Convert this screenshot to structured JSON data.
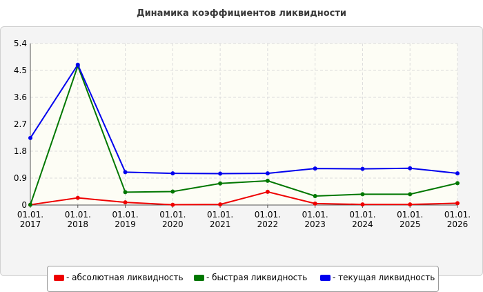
{
  "chart_data": {
    "type": "line",
    "title": "Динамика коэффициентов ликвидности",
    "xlabel": "",
    "ylabel": "",
    "categories": [
      [
        "01.01.",
        "2017"
      ],
      [
        "01.01.",
        "2018"
      ],
      [
        "01.01.",
        "2019"
      ],
      [
        "01.01.",
        "2020"
      ],
      [
        "01.01.",
        "2021"
      ],
      [
        "01.01.",
        "2022"
      ],
      [
        "01.01.",
        "2023"
      ],
      [
        "01.01.",
        "2024"
      ],
      [
        "01.01.",
        "2025"
      ],
      [
        "01.01.",
        "2026"
      ]
    ],
    "y_ticks": [
      "0",
      "0.9",
      "1.8",
      "2.7",
      "3.6",
      "4.5",
      "5.4"
    ],
    "ylim": [
      0,
      5.4
    ],
    "grid": true,
    "legend_position": "bottom",
    "series": [
      {
        "name": "- абсолютная ликвидность",
        "color": "#ee0000",
        "values": [
          0.01,
          0.24,
          0.09,
          0.01,
          0.02,
          0.44,
          0.05,
          0.02,
          0.02,
          0.06
        ]
      },
      {
        "name": "- быстрая ликвидность",
        "color": "#007700",
        "values": [
          0.01,
          4.65,
          0.43,
          0.45,
          0.72,
          0.81,
          0.3,
          0.36,
          0.36,
          0.73
        ]
      },
      {
        "name": "- текущая ликвидность",
        "color": "#0000ee",
        "values": [
          2.24,
          4.69,
          1.1,
          1.06,
          1.05,
          1.06,
          1.22,
          1.21,
          1.23,
          1.06
        ]
      }
    ]
  }
}
